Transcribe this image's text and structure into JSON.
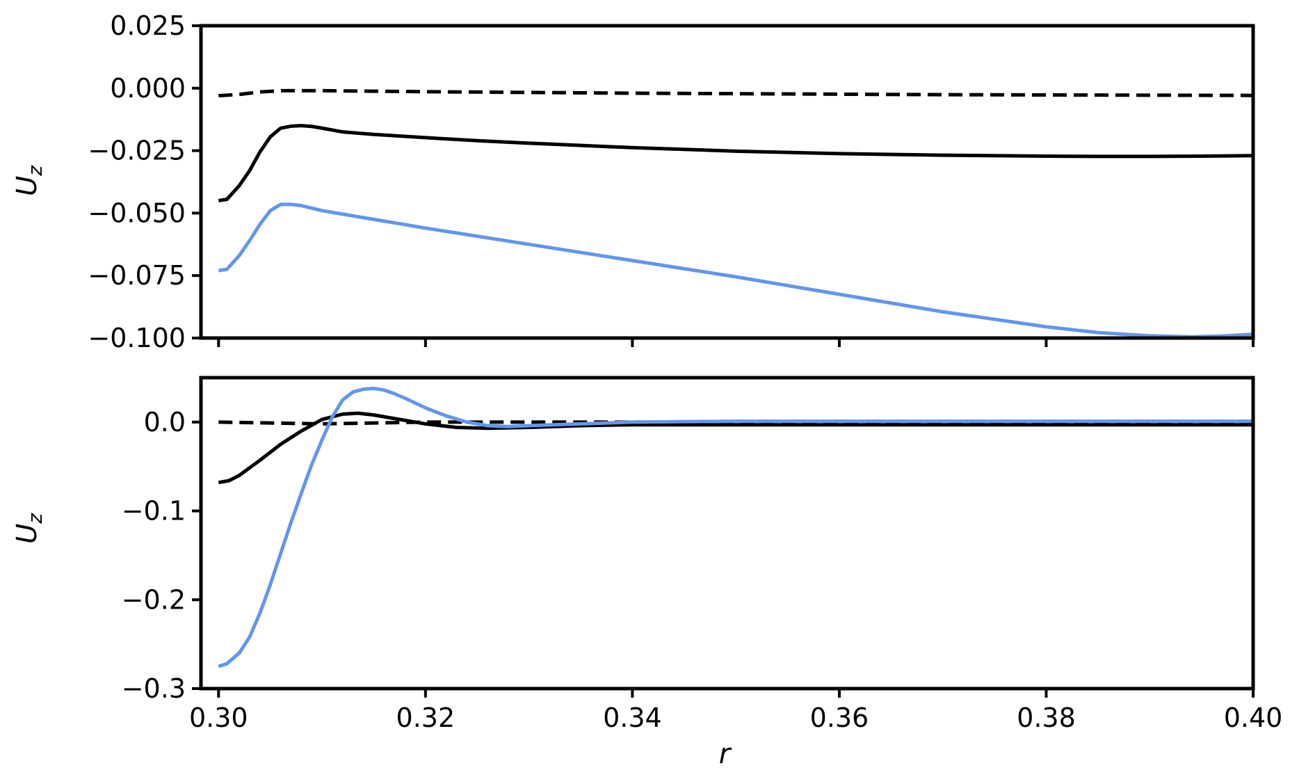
{
  "figure": {
    "xlabel": "r",
    "ylabel_main": "U",
    "ylabel_sub": "z"
  },
  "chart_data": [
    {
      "type": "line",
      "title": "",
      "xlabel": "",
      "ylabel": "U_z",
      "xlim": [
        0.2983,
        0.4
      ],
      "ylim": [
        -0.1,
        0.025
      ],
      "xticks": [
        0.3,
        0.32,
        0.34,
        0.36,
        0.38,
        0.4
      ],
      "yticks": [
        -0.1,
        -0.075,
        -0.05,
        -0.025,
        0.0,
        0.025
      ],
      "ytick_labels": [
        "−0.100",
        "−0.075",
        "−0.050",
        "−0.025",
        "0.000",
        "0.025"
      ],
      "show_xtick_labels": false,
      "grid": false,
      "series": [
        {
          "color": "#000000",
          "style": "dashed",
          "x": [
            0.3,
            0.302,
            0.304,
            0.306,
            0.308,
            0.31,
            0.315,
            0.32,
            0.33,
            0.34,
            0.35,
            0.36,
            0.37,
            0.38,
            0.39,
            0.4
          ],
          "y": [
            -0.003,
            -0.0025,
            -0.0015,
            -0.001,
            -0.001,
            -0.001,
            -0.0012,
            -0.0014,
            -0.0017,
            -0.002,
            -0.0022,
            -0.0024,
            -0.0026,
            -0.0027,
            -0.0028,
            -0.0029
          ]
        },
        {
          "color": "#000000",
          "style": "solid",
          "x": [
            0.3,
            0.3008,
            0.302,
            0.303,
            0.304,
            0.305,
            0.306,
            0.307,
            0.308,
            0.309,
            0.31,
            0.312,
            0.315,
            0.32,
            0.325,
            0.33,
            0.34,
            0.35,
            0.36,
            0.37,
            0.38,
            0.385,
            0.39,
            0.395,
            0.4
          ],
          "y": [
            -0.045,
            -0.0445,
            -0.039,
            -0.033,
            -0.0255,
            -0.0195,
            -0.016,
            -0.0152,
            -0.015,
            -0.0153,
            -0.016,
            -0.0175,
            -0.0185,
            -0.0198,
            -0.021,
            -0.022,
            -0.0238,
            -0.0252,
            -0.0262,
            -0.0268,
            -0.0272,
            -0.0273,
            -0.0273,
            -0.0272,
            -0.027
          ]
        },
        {
          "color": "#6495ED",
          "style": "solid",
          "x": [
            0.3,
            0.3008,
            0.302,
            0.303,
            0.304,
            0.305,
            0.306,
            0.307,
            0.308,
            0.31,
            0.315,
            0.32,
            0.33,
            0.34,
            0.35,
            0.36,
            0.37,
            0.38,
            0.385,
            0.39,
            0.394,
            0.397,
            0.4
          ],
          "y": [
            -0.073,
            -0.0725,
            -0.067,
            -0.061,
            -0.0545,
            -0.049,
            -0.0465,
            -0.0465,
            -0.047,
            -0.049,
            -0.0525,
            -0.056,
            -0.0625,
            -0.069,
            -0.0755,
            -0.0825,
            -0.0895,
            -0.0955,
            -0.0978,
            -0.0991,
            -0.0995,
            -0.0992,
            -0.0985
          ]
        }
      ]
    },
    {
      "type": "line",
      "title": "",
      "xlabel": "r",
      "ylabel": "U_z",
      "xlim": [
        0.2983,
        0.4
      ],
      "ylim": [
        -0.3,
        0.05
      ],
      "xticks": [
        0.3,
        0.32,
        0.34,
        0.36,
        0.38,
        0.4
      ],
      "xtick_labels": [
        "0.30",
        "0.32",
        "0.34",
        "0.36",
        "0.38",
        "0.40"
      ],
      "yticks": [
        -0.3,
        -0.2,
        -0.1,
        0.0
      ],
      "ytick_labels": [
        "−0.3",
        "−0.2",
        "−0.1",
        "0.0"
      ],
      "show_xtick_labels": true,
      "grid": false,
      "series": [
        {
          "color": "#000000",
          "style": "dashed",
          "x": [
            0.3,
            0.305,
            0.31,
            0.315,
            0.32,
            0.325,
            0.33,
            0.34,
            0.35,
            0.36,
            0.37,
            0.38,
            0.39,
            0.4
          ],
          "y": [
            0.0,
            -0.001,
            -0.002,
            -0.001,
            0.0,
            0.0,
            0.0,
            0.0,
            0.0,
            0.0,
            0.0,
            0.0,
            0.0,
            0.0
          ]
        },
        {
          "color": "#000000",
          "style": "solid",
          "x": [
            0.3,
            0.301,
            0.302,
            0.304,
            0.306,
            0.308,
            0.31,
            0.312,
            0.3135,
            0.315,
            0.317,
            0.32,
            0.323,
            0.326,
            0.33,
            0.335,
            0.34,
            0.35,
            0.36,
            0.38,
            0.4
          ],
          "y": [
            -0.068,
            -0.066,
            -0.06,
            -0.043,
            -0.025,
            -0.01,
            0.003,
            0.009,
            0.01,
            0.008,
            0.004,
            -0.002,
            -0.006,
            -0.007,
            -0.006,
            -0.004,
            -0.003,
            -0.003,
            -0.003,
            -0.003,
            -0.003
          ]
        },
        {
          "color": "#6495ED",
          "style": "solid",
          "x": [
            0.3,
            0.3008,
            0.302,
            0.303,
            0.304,
            0.305,
            0.306,
            0.307,
            0.308,
            0.309,
            0.31,
            0.311,
            0.312,
            0.313,
            0.314,
            0.315,
            0.316,
            0.317,
            0.318,
            0.32,
            0.322,
            0.324,
            0.326,
            0.328,
            0.33,
            0.335,
            0.34,
            0.35,
            0.36,
            0.38,
            0.4
          ],
          "y": [
            -0.275,
            -0.272,
            -0.26,
            -0.242,
            -0.215,
            -0.183,
            -0.148,
            -0.113,
            -0.08,
            -0.048,
            -0.02,
            0.006,
            0.025,
            0.034,
            0.037,
            0.038,
            0.036,
            0.032,
            0.027,
            0.016,
            0.007,
            0.0,
            -0.004,
            -0.005,
            -0.004,
            -0.002,
            0.0,
            0.001,
            0.001,
            0.001,
            0.001
          ]
        }
      ]
    }
  ]
}
